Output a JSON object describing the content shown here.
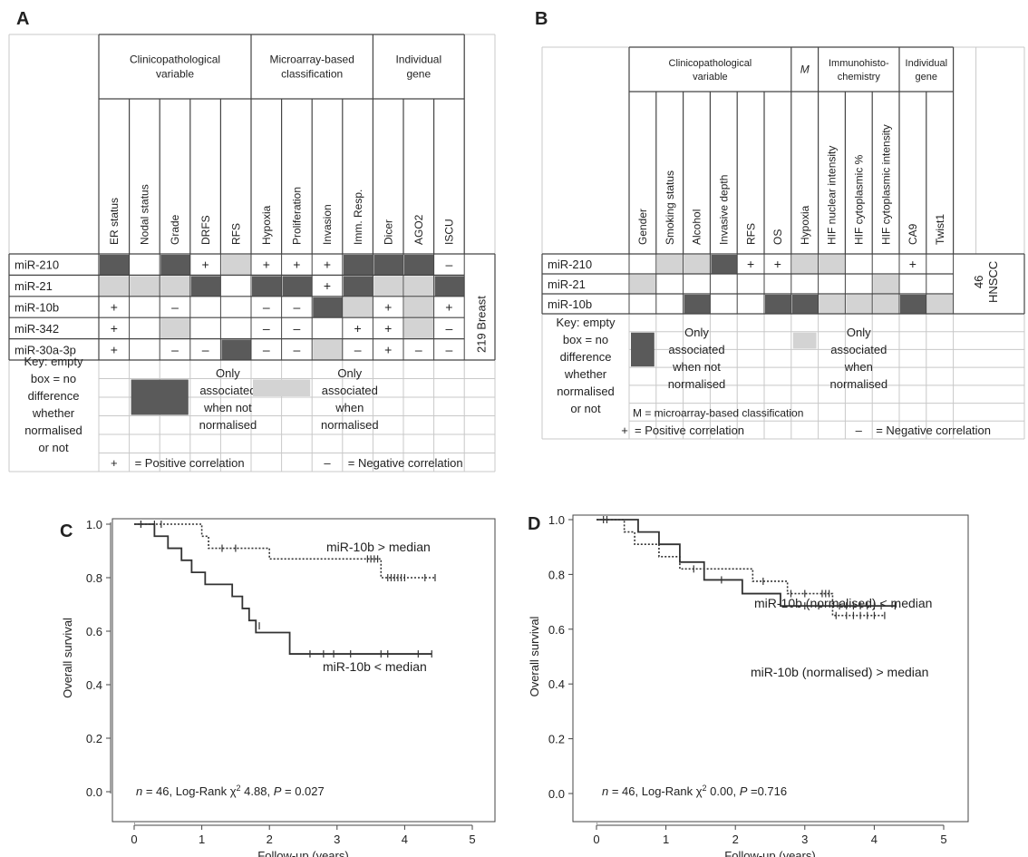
{
  "colors": {
    "dark": "#5a5a5a",
    "light": "#d3d3d3",
    "grid": "#c8c8c8",
    "border": "#444444",
    "text": "#222222"
  },
  "panel_labels": {
    "a": "A",
    "b": "B",
    "c": "C",
    "d": "D"
  },
  "table_a": {
    "groups": [
      "Clinicopathological|variable",
      "Microarray-based|classification",
      "Individual|gene"
    ],
    "columns": [
      "ER status",
      "Nodal status",
      "Grade",
      "DRFS",
      "RFS",
      "Hypoxia",
      "Proliferation",
      "Invasion",
      "Imm. Resp.",
      "Dicer",
      "AGO2",
      "ISCU"
    ],
    "rows": [
      "miR-210",
      "miR-21",
      "miR-10b",
      "miR-342",
      "miR-30a-3p"
    ],
    "cells": [
      [
        "D",
        "",
        "D",
        "+",
        "L",
        "+",
        "+",
        "+",
        "D",
        "D",
        "D",
        "–"
      ],
      [
        "L",
        "L",
        "L",
        "D",
        "",
        "D",
        "D",
        "+",
        "D",
        "L",
        "L",
        "D"
      ],
      [
        "+",
        "",
        "–",
        "",
        "",
        "–",
        "–",
        "D",
        "L",
        "+",
        "L",
        "+"
      ],
      [
        "+",
        "",
        "L",
        "",
        "",
        "–",
        "–",
        "",
        "+",
        "+",
        "L",
        "–"
      ],
      [
        "+",
        "",
        "–",
        "–",
        "D",
        "–",
        "–",
        "L",
        "–",
        "+",
        "–",
        "–"
      ]
    ],
    "side_label": "219 Breast",
    "key_text": "Key: empty|box = no|difference|whether|normalised|or not",
    "only_not_normalised": "Only|associated|when not|normalised",
    "only_normalised": "Only|associated|when|normalised",
    "plus": "+",
    "positive": "= Positive correlation",
    "minus": "–",
    "negative": "= Negative correlation"
  },
  "table_b": {
    "groups": [
      "Clinicopathological|variable",
      "M",
      "Immunohisto-|chemistry",
      "Individual|gene"
    ],
    "columns": [
      "Gender",
      "Smoking status",
      "Alcohol",
      "Invasive depth",
      "RFS",
      "OS",
      "Hypoxia",
      "HIF nuclear intensity",
      "HIF cytoplasmic %",
      "HIF cytoplasmic intensity",
      "CA9",
      "Twist1"
    ],
    "rows": [
      "miR-210",
      "miR-21",
      "miR-10b"
    ],
    "cells": [
      [
        "",
        "L",
        "L",
        "D",
        "+",
        "+",
        "L",
        "L",
        "",
        "",
        "+",
        ""
      ],
      [
        "L",
        "",
        "",
        "",
        "",
        "",
        "",
        "",
        "",
        "L",
        "",
        ""
      ],
      [
        "",
        "",
        "D",
        "",
        "",
        "D",
        "D",
        "L",
        "L",
        "L",
        "D",
        "L"
      ]
    ],
    "side_label_1": "46",
    "side_label_2": "HNSCC",
    "key_text": "Key: empty|box = no|difference|whether|normalised|or not",
    "only_not_normalised": "Only|associated|when not|normalised",
    "only_normalised": "Only|associated|when|normalised",
    "m_note": "M = microarray-based classification",
    "plus": "+",
    "positive": "= Positive correlation",
    "minus": "–",
    "negative": "= Negative correlation"
  },
  "chart_data": [
    {
      "panel": "C",
      "type": "line",
      "xlabel": "Follow-up (years)",
      "ylabel": "Overall survival",
      "xlim": [
        0,
        5
      ],
      "ylim": [
        0,
        1
      ],
      "xticks": [
        0,
        1,
        2,
        3,
        4,
        5
      ],
      "yticks": [
        "0.0",
        "0.2",
        "0.4",
        "0.6",
        "0.8",
        "1.0"
      ],
      "series": [
        {
          "name": "miR-10b > median",
          "style": "dotted",
          "x": [
            0,
            1.0,
            1.1,
            2.0,
            3.45,
            3.65,
            4.45
          ],
          "y": [
            1.0,
            0.955,
            0.91,
            0.87,
            0.87,
            0.8,
            0.8
          ],
          "censored_x": [
            0.1,
            0.3,
            0.4,
            1.3,
            1.5,
            3.45,
            3.5,
            3.55,
            3.6,
            3.75,
            3.8,
            3.85,
            3.9,
            3.95,
            4.0,
            4.3,
            4.45
          ],
          "censored_y": [
            1.0,
            1.0,
            1.0,
            0.91,
            0.91,
            0.87,
            0.87,
            0.87,
            0.87,
            0.8,
            0.8,
            0.8,
            0.8,
            0.8,
            0.8,
            0.8,
            0.8
          ]
        },
        {
          "name": "miR-10b < median",
          "style": "solid",
          "x": [
            0,
            0.3,
            0.5,
            0.7,
            0.85,
            1.05,
            1.45,
            1.6,
            1.7,
            1.8,
            2.3,
            4.4
          ],
          "y": [
            1.0,
            0.955,
            0.91,
            0.865,
            0.82,
            0.775,
            0.73,
            0.685,
            0.64,
            0.595,
            0.515,
            0.515
          ],
          "censored_x": [
            0.1,
            1.85,
            2.6,
            2.8,
            2.95,
            3.2,
            3.65,
            3.75,
            4.2,
            4.4
          ],
          "censored_y": [
            1.0,
            0.62,
            0.515,
            0.515,
            0.515,
            0.515,
            0.515,
            0.515,
            0.515,
            0.515
          ]
        }
      ],
      "annotation_n": "n",
      "annotation_prefix": " = 46, Log-Rank χ",
      "annotation_sup": "2",
      "annotation_mid": " 4.88, ",
      "annotation_p": "P",
      "annotation_suffix": " = 0.027"
    },
    {
      "panel": "D",
      "type": "line",
      "xlabel": "Follow-up (years)",
      "ylabel": "Overall survival",
      "xlim": [
        0,
        5
      ],
      "ylim": [
        0,
        1
      ],
      "xticks": [
        0,
        1,
        2,
        3,
        4,
        5
      ],
      "yticks": [
        "0.0",
        "0.2",
        "0.4",
        "0.6",
        "0.8",
        "1.0"
      ],
      "series": [
        {
          "name": "miR-10b (normalised) < median",
          "style": "dotted",
          "x": [
            0,
            0.4,
            0.55,
            0.9,
            1.2,
            1.6,
            2.25,
            2.75,
            3.4,
            4.15
          ],
          "y": [
            1.0,
            0.955,
            0.91,
            0.865,
            0.82,
            0.82,
            0.775,
            0.73,
            0.65,
            0.65
          ],
          "censored_x": [
            0.15,
            1.4,
            2.4,
            2.8,
            3.0,
            3.25,
            3.3,
            3.35,
            3.45,
            3.6,
            3.7,
            3.8,
            3.9,
            4.0,
            4.15
          ],
          "censored_y": [
            1.0,
            0.82,
            0.775,
            0.73,
            0.73,
            0.73,
            0.73,
            0.73,
            0.65,
            0.65,
            0.65,
            0.65,
            0.65,
            0.65,
            0.65
          ]
        },
        {
          "name": "miR-10b (normalised) > median",
          "style": "solid",
          "x": [
            0,
            0.6,
            0.9,
            1.2,
            1.55,
            2.1,
            2.65,
            4.3
          ],
          "y": [
            1.0,
            0.955,
            0.91,
            0.845,
            0.78,
            0.73,
            0.685,
            0.685
          ],
          "censored_x": [
            0.1,
            1.8,
            3.0,
            3.2,
            3.5,
            3.6,
            3.7,
            3.8,
            3.9,
            4.0,
            4.1,
            4.3
          ],
          "censored_y": [
            1.0,
            0.78,
            0.685,
            0.685,
            0.685,
            0.685,
            0.685,
            0.685,
            0.685,
            0.685,
            0.685,
            0.685
          ]
        }
      ],
      "annotation_n": "n",
      "annotation_prefix": " = 46, Log-Rank χ",
      "annotation_sup": "2",
      "annotation_mid": " 0.00, ",
      "annotation_p": "P",
      "annotation_suffix": " =0.716"
    }
  ]
}
